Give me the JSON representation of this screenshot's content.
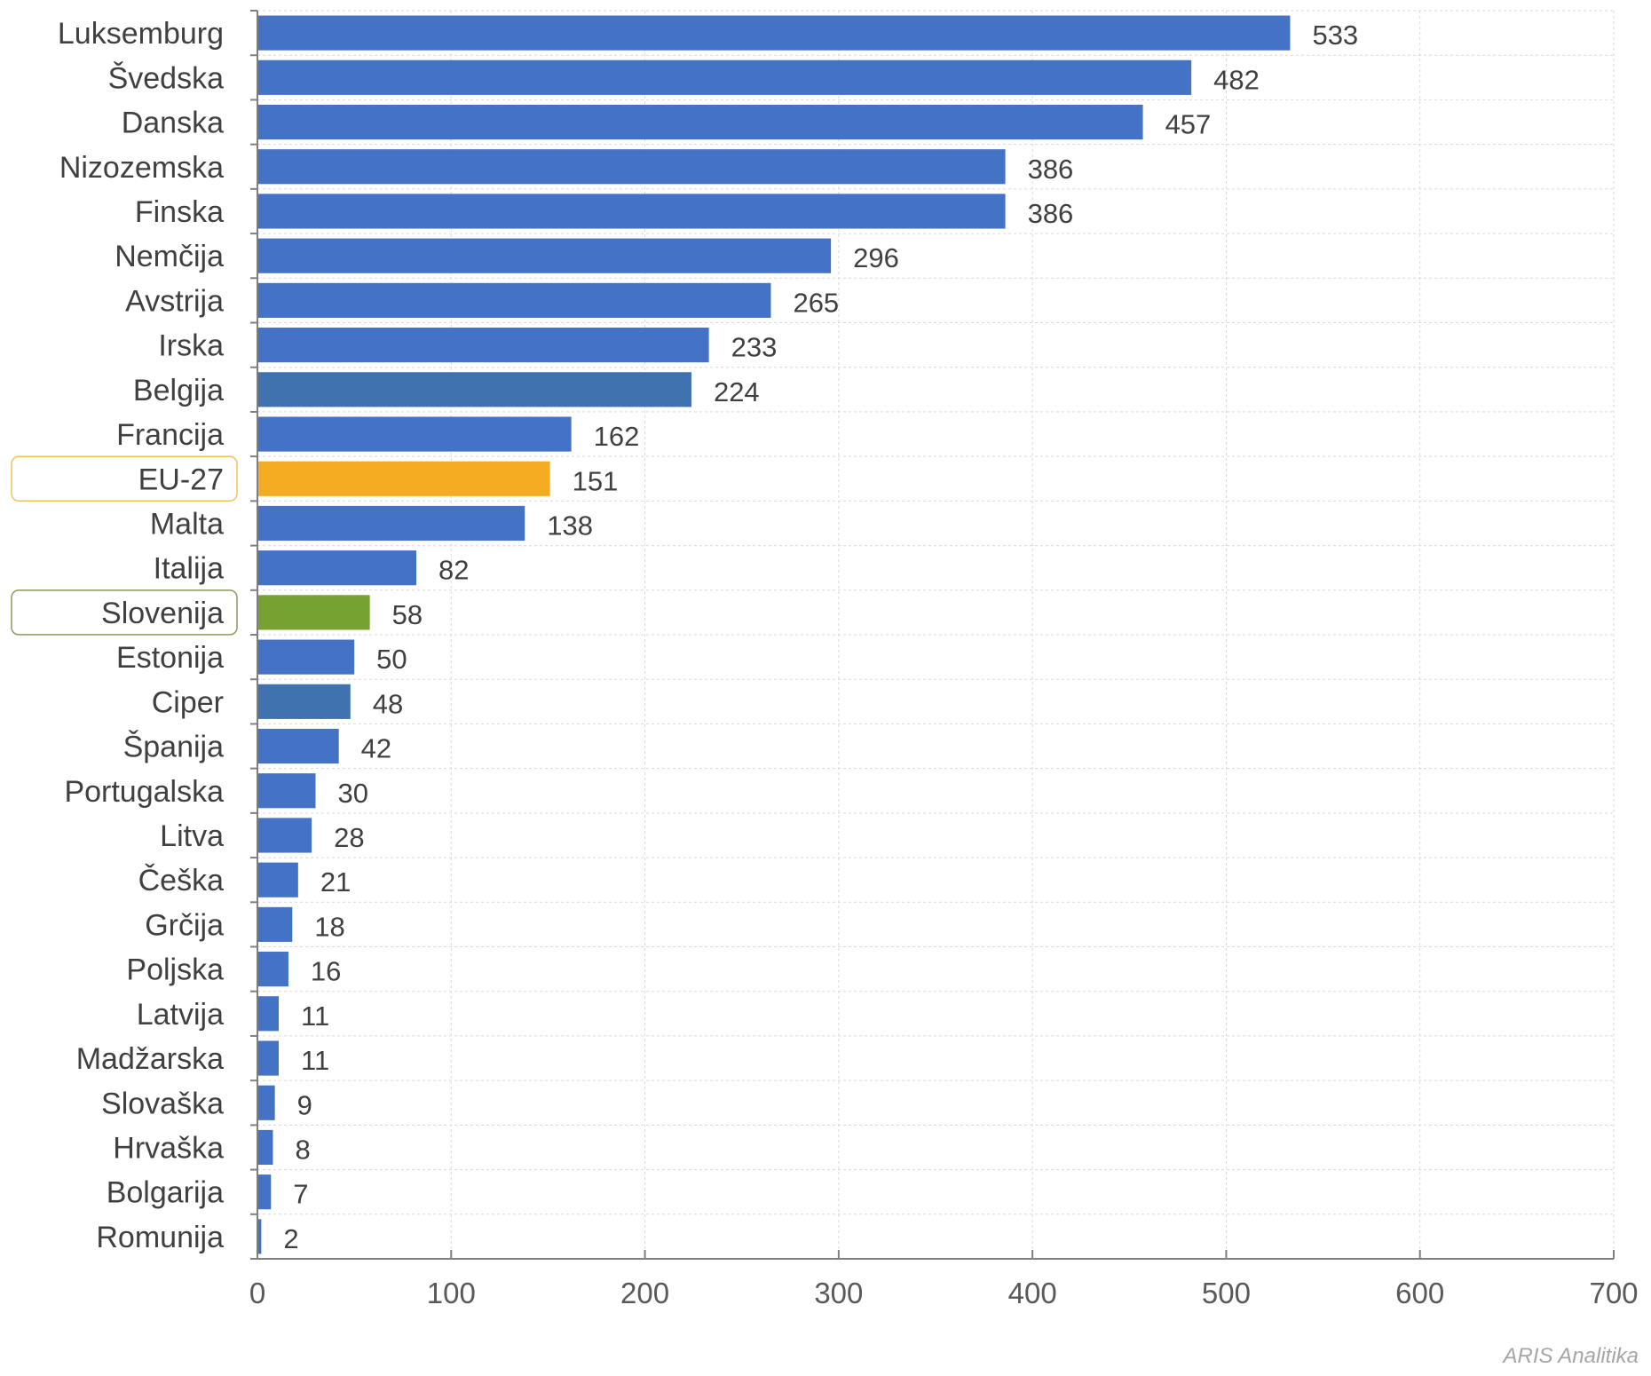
{
  "chart_data": {
    "type": "bar",
    "orientation": "horizontal",
    "categories": [
      "Luksemburg",
      "Švedska",
      "Danska",
      "Nizozemska",
      "Finska",
      "Nemčija",
      "Avstrija",
      "Irska",
      "Belgija",
      "Francija",
      "EU-27",
      "Malta",
      "Italija",
      "Slovenija",
      "Estonija",
      "Ciper",
      "Španija",
      "Portugalska",
      "Litva",
      "Češka",
      "Grčija",
      "Poljska",
      "Latvija",
      "Madžarska",
      "Slovaška",
      "Hrvaška",
      "Bolgarija",
      "Romunija"
    ],
    "values": [
      533,
      482,
      457,
      386,
      386,
      296,
      265,
      233,
      224,
      162,
      151,
      138,
      82,
      58,
      50,
      48,
      42,
      30,
      28,
      21,
      18,
      16,
      11,
      11,
      9,
      8,
      7,
      2
    ],
    "xlim": [
      0,
      700
    ],
    "xticks": [
      0,
      100,
      200,
      300,
      400,
      500,
      600,
      700
    ],
    "grid": true,
    "colors": {
      "default": "#4472c4",
      "alternate": "#3f72af",
      "eu": "#f5ac22",
      "slovenia": "#76a232",
      "eu_frame": "#f0c15a",
      "slovenia_frame": "#8a9a5b",
      "grid": "#d9d9d9",
      "axis": "#7f7f7f"
    },
    "bar_color_overrides": {
      "Belgija": "alternate",
      "Ciper": "alternate",
      "EU-27": "eu",
      "Slovenija": "slovenia"
    },
    "highlighted_labels": {
      "EU-27": "eu_frame",
      "Slovenija": "slovenia_frame"
    }
  },
  "credit": "ARIS Analitika"
}
